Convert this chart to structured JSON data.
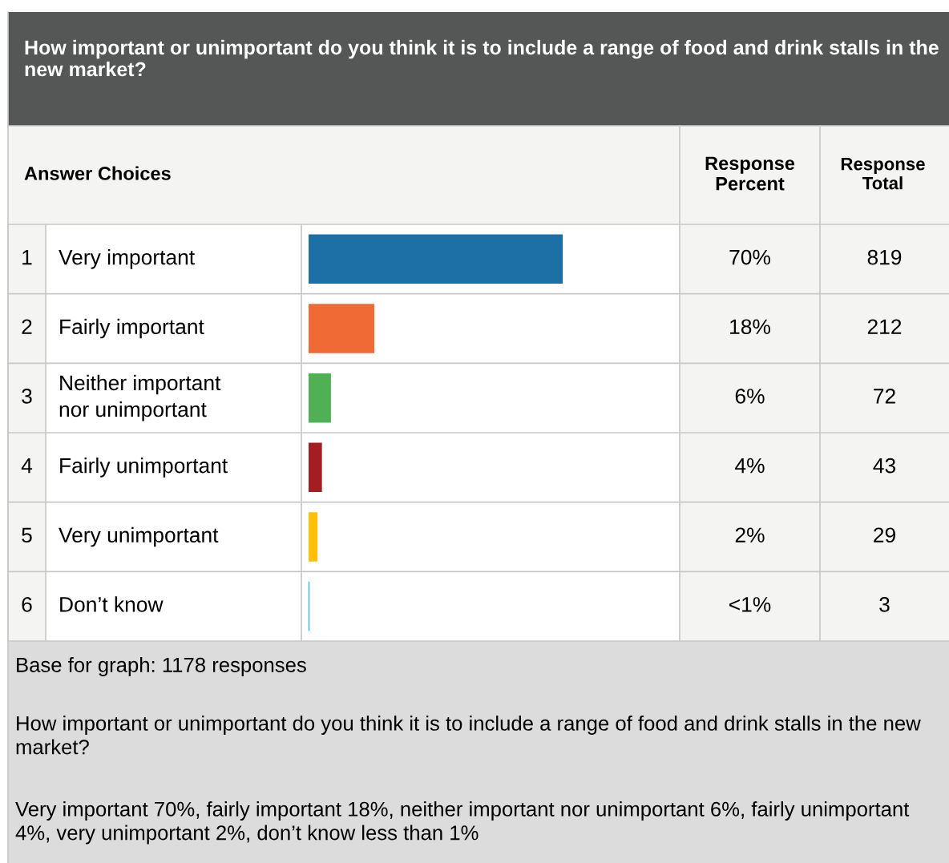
{
  "chart_data": {
    "type": "bar",
    "orientation": "horizontal",
    "title": "How important or unimportant do you think it is to include a range of food and drink stalls in the new market?",
    "categories": [
      "Very important",
      "Fairly important",
      "Neither important nor unimportant",
      "Fairly unimportant",
      "Very unimportant",
      "Don’t know"
    ],
    "values": [
      819,
      212,
      72,
      43,
      29,
      3
    ],
    "colors": [
      "#1d70a5",
      "#f06a35",
      "#4fb153",
      "#a41d21",
      "#ffc107",
      "#00bcd5"
    ],
    "data_labels": true,
    "annotations": [
      "Answer Choices",
      "Response Percent",
      "Response Total",
      "1",
      "2",
      "3",
      "4",
      "5",
      "6",
      "70%",
      "18%",
      "6%",
      "4%",
      "2%",
      "<1%",
      "Base for graph: 1178 responses",
      "How important or unimportant do you think it is to include a range of food and drink stalls in the new market?",
      "Very important 70%, fairly important 18%, neither important nor unimportant 6%, fairly unimportant 4%, very unimportant 2%, don’t know less than 1%"
    ]
  }
}
